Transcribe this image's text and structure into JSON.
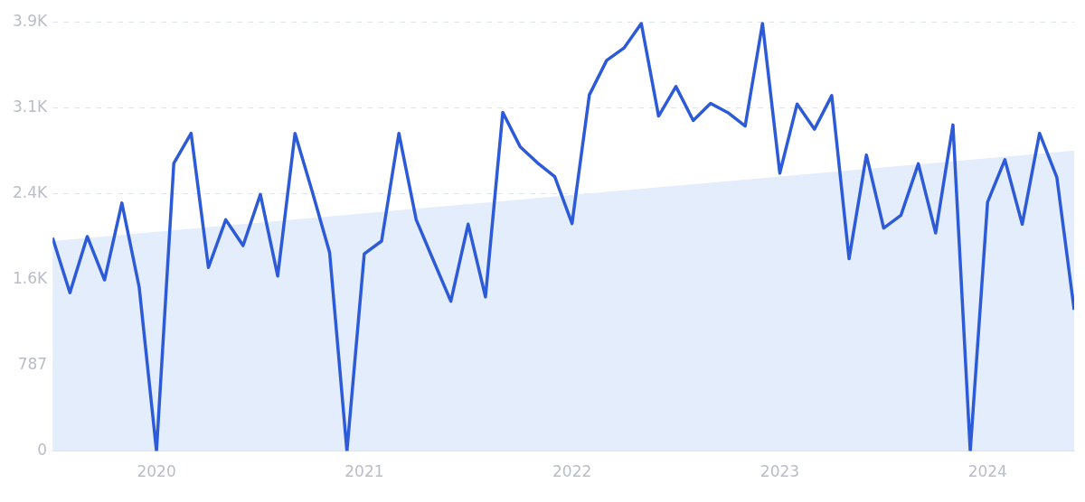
{
  "chart_data": {
    "type": "line",
    "x": [
      "2019-07",
      "2019-08",
      "2019-09",
      "2019-10",
      "2019-11",
      "2019-12",
      "2020-01",
      "2020-02",
      "2020-03",
      "2020-04",
      "2020-05",
      "2020-06",
      "2020-07",
      "2020-08",
      "2020-09",
      "2020-10",
      "2020-11",
      "2020-12",
      "2021-01",
      "2021-02",
      "2021-03",
      "2021-04",
      "2021-05",
      "2021-06",
      "2021-07",
      "2021-08",
      "2021-09",
      "2021-10",
      "2021-11",
      "2021-12",
      "2022-01",
      "2022-02",
      "2022-03",
      "2022-04",
      "2022-05",
      "2022-06",
      "2022-07",
      "2022-08",
      "2022-09",
      "2022-10",
      "2022-11",
      "2022-12",
      "2023-01",
      "2023-02",
      "2023-03",
      "2023-04",
      "2023-05",
      "2023-06",
      "2023-07",
      "2023-08",
      "2023-09",
      "2023-10",
      "2023-11",
      "2023-12",
      "2024-01",
      "2024-02",
      "2024-03",
      "2024-04",
      "2024-05",
      "2024-06"
    ],
    "series": [
      {
        "type": "area",
        "color": "#e3edfc",
        "x": [
          "2019-07",
          "2024-06"
        ],
        "values": [
          1926,
          2756
        ]
      },
      {
        "color": "#2d5bd7",
        "values": [
          1955,
          1452,
          1967,
          1569,
          2274,
          1503,
          0,
          2639,
          2913,
          1683,
          2121,
          1884,
          2353,
          1605,
          2913,
          2376,
          1819,
          0,
          1809,
          1925,
          2913,
          2121,
          1745,
          1374,
          2080,
          1413,
          3105,
          2791,
          2643,
          2516,
          2086,
          3265,
          3582,
          3695,
          3920,
          3071,
          3342,
          3030,
          3188,
          3103,
          2980,
          3920,
          2548,
          3182,
          2951,
          3259,
          1763,
          2714,
          2044,
          2163,
          2634,
          2000,
          2990,
          0,
          2282,
          2671,
          2080,
          2913,
          2510,
          1295
        ]
      }
    ],
    "xlim": [
      "2019-07",
      "2024-06"
    ],
    "xticks": [
      {
        "value": "2020-01",
        "label": "2020"
      },
      {
        "value": "2021-01",
        "label": "2021"
      },
      {
        "value": "2022-01",
        "label": "2022"
      },
      {
        "value": "2023-01",
        "label": "2023"
      },
      {
        "value": "2024-01",
        "label": "2024"
      }
    ],
    "ylim": [
      0,
      3935
    ],
    "yticks": [
      0,
      787,
      {
        "value": 1574,
        "label": "1.6K"
      },
      {
        "value": 2361,
        "label": "2.4K"
      },
      {
        "value": 3148,
        "label": "3.1K"
      },
      {
        "value": 3935,
        "label": "3.9K"
      }
    ],
    "grid": "y",
    "legend": false,
    "marker": "none",
    "line_style": "solid"
  }
}
